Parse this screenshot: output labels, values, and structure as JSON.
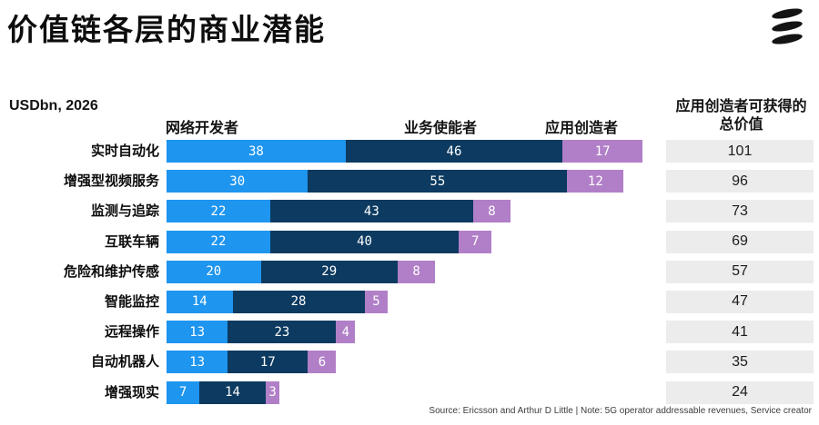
{
  "title": "价值链各层的商业潜能",
  "unit_label": "USDbn, 2026",
  "headers": {
    "network_developer": "网络开发者",
    "service_enabler": "业务使能者",
    "application_creator": "应用创造者",
    "total_column": "应用创造者可获得的总价值"
  },
  "source_note": "Source: Ericsson and Arthur D Little  |  Note: 5G operator addressable revenues, Service creator",
  "icons": {
    "brand_logo": "ericsson-three-bars-logo"
  },
  "colors": {
    "network_developer": "#1E95EF",
    "service_enabler": "#0C3A60",
    "application_creator": "#B17FC7",
    "total_box_bg": "#ECECEC",
    "bar_value_text": "#FFFFFF",
    "logo": "#141414"
  },
  "chart_data": {
    "type": "bar",
    "orientation": "horizontal",
    "stacked": true,
    "title": "价值链各层的商业潜能",
    "unit": "USDbn, 2026",
    "xlim": [
      0,
      101
    ],
    "grid": false,
    "legend_position": "top-as-column-headers",
    "categories": [
      "实时自动化",
      "增强型视频服务",
      "监测与追踪",
      "互联车辆",
      "危险和维护传感",
      "智能监控",
      "远程操作",
      "自动机器人",
      "增强现实"
    ],
    "series": [
      {
        "name": "网络开发者",
        "color": "#1E95EF",
        "values": [
          38,
          30,
          22,
          22,
          20,
          14,
          13,
          13,
          7
        ]
      },
      {
        "name": "业务使能者",
        "color": "#0C3A60",
        "values": [
          46,
          55,
          43,
          40,
          29,
          28,
          23,
          17,
          14
        ]
      },
      {
        "name": "应用创造者",
        "color": "#B17FC7",
        "values": [
          17,
          12,
          8,
          7,
          8,
          5,
          4,
          6,
          3
        ]
      }
    ],
    "totals": {
      "label": "应用创造者可获得的总价值",
      "values": [
        101,
        96,
        73,
        69,
        57,
        47,
        41,
        35,
        24
      ]
    }
  }
}
